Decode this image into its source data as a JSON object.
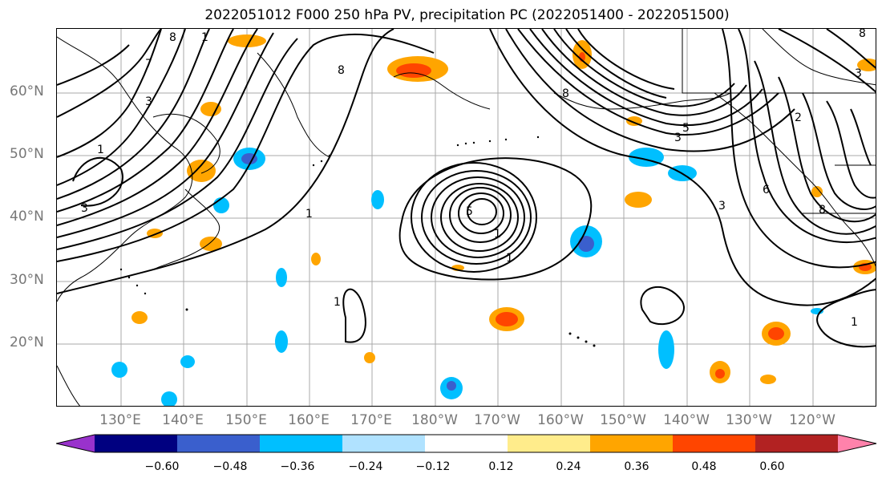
{
  "title": "2022051012 F000 250 hPa PV, precipitation PC (2022051400 - 2022051500)",
  "lat_labels": [
    "60°N",
    "50°N",
    "40°N",
    "30°N",
    "20°N"
  ],
  "lon_labels": [
    "130°E",
    "140°E",
    "150°E",
    "160°E",
    "170°E",
    "180°W",
    "170°W",
    "160°W",
    "150°W",
    "140°W",
    "130°W",
    "120°W"
  ],
  "colorbar": {
    "ticks": [
      "−0.60",
      "−0.48",
      "−0.36",
      "−0.24",
      "−0.12",
      "0.12",
      "0.24",
      "0.36",
      "0.48",
      "0.60"
    ],
    "colors": [
      "#9932cc",
      "#000080",
      "#3a5fcd",
      "#00bfff",
      "#b0e2ff",
      "#ffffff",
      "#ffec8b",
      "#ffa500",
      "#ff4500",
      "#b22222",
      "#ff82ab"
    ]
  },
  "contour_labels": [
    "8",
    "7",
    "3",
    "1",
    "3",
    "8",
    "8",
    "5",
    "1",
    "3",
    "8",
    "5",
    "3",
    "1",
    "1",
    "2",
    "6",
    "8",
    "1",
    "3",
    "1",
    "1"
  ],
  "legend_colors": {
    "dark_blue": "#000080",
    "light_blue": "#b0e2ff",
    "orange": "#ffa500",
    "red": "#ff4500"
  }
}
